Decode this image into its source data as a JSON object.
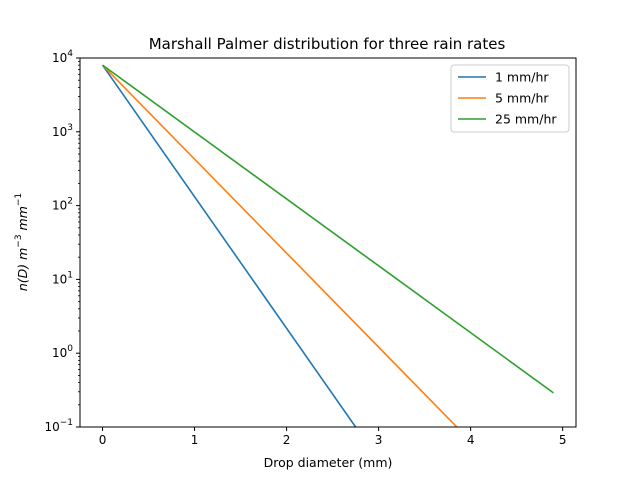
{
  "chart_data": {
    "type": "line",
    "title": "Marshall Palmer distribution for three rain rates",
    "xlabel": "Drop diameter (mm)",
    "ylabel": "n(D) m^-3 mm^-1",
    "ylabel_parts": {
      "main": "n(D) m",
      "exp1": "−3",
      "mid": " mm",
      "exp2": "−1"
    },
    "yscale": "log",
    "xlim": [
      -0.245,
      5.145
    ],
    "ylim": [
      0.1,
      10000
    ],
    "x_ticks": [
      0,
      1,
      2,
      3,
      4,
      5
    ],
    "x_tick_labels": [
      "0",
      "1",
      "2",
      "3",
      "4",
      "5"
    ],
    "y_ticks": [
      0.1,
      1,
      10,
      100,
      1000,
      10000
    ],
    "y_tick_labels": [
      {
        "base": "10",
        "exp": "−1"
      },
      {
        "base": "10",
        "exp": "0"
      },
      {
        "base": "10",
        "exp": "1"
      },
      {
        "base": "10",
        "exp": "2"
      },
      {
        "base": "10",
        "exp": "3"
      },
      {
        "base": "10",
        "exp": "4"
      }
    ],
    "grid": false,
    "legend_position": "top-right",
    "series": [
      {
        "name": "1 mm/hr",
        "color": "#1f77b4",
        "x": [
          0,
          2.75
        ],
        "y": [
          8000,
          0.1
        ]
      },
      {
        "name": "5 mm/hr",
        "color": "#ff7f0e",
        "x": [
          0,
          3.85
        ],
        "y": [
          8000,
          0.1
        ]
      },
      {
        "name": "25 mm/hr",
        "color": "#2ca02c",
        "x": [
          0,
          4.9
        ],
        "y": [
          8000,
          0.29
        ]
      }
    ]
  }
}
